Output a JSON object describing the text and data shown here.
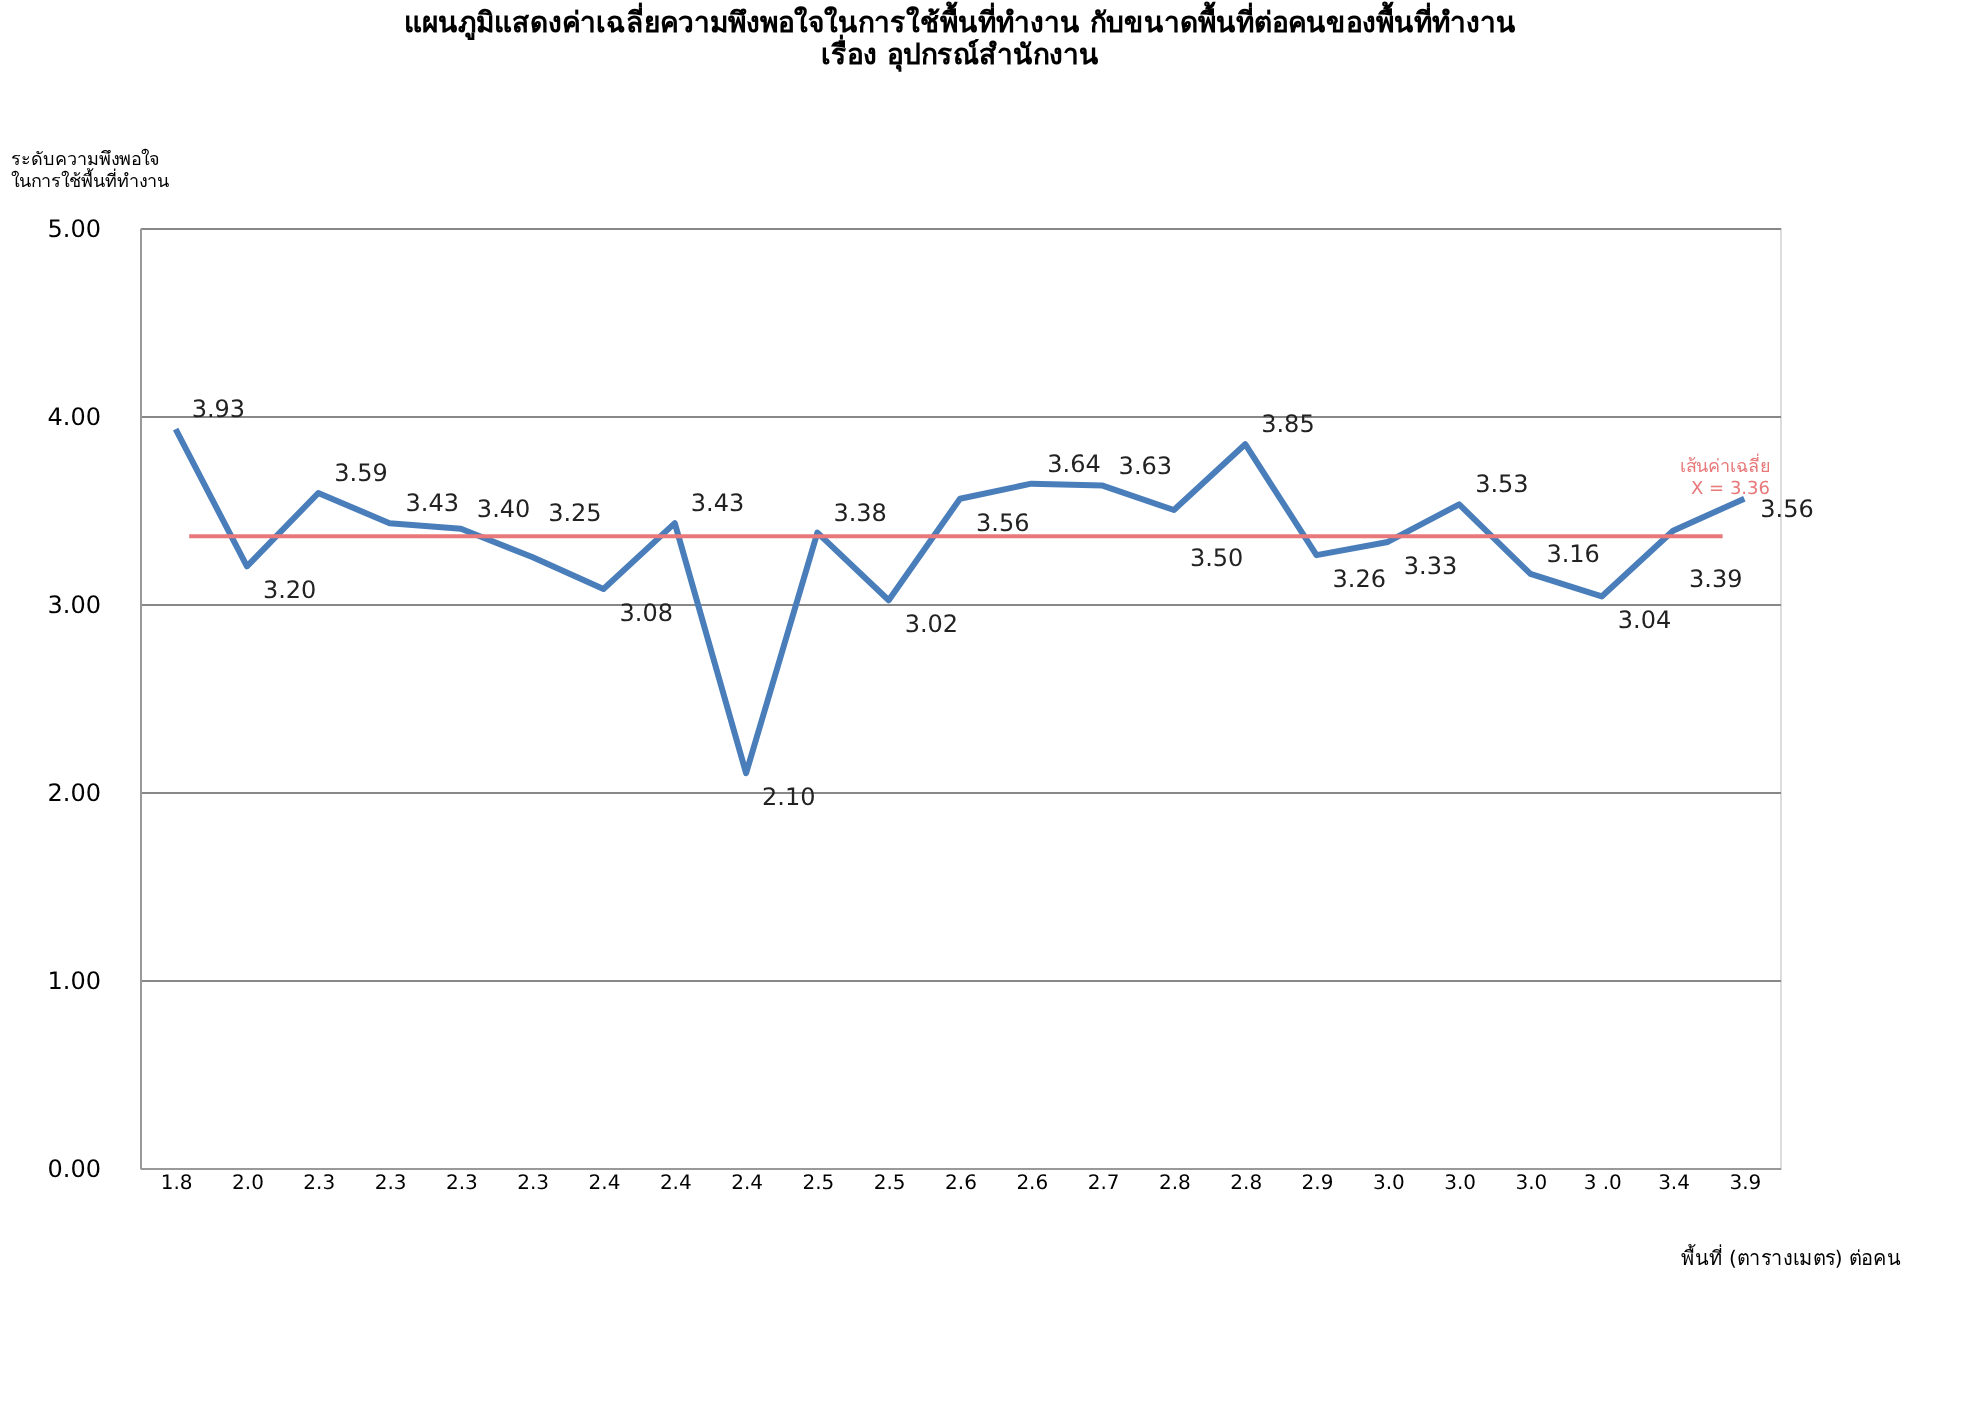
{
  "chart_data": {
    "type": "line",
    "title": [
      "แผนภูมิแสดงค่าเฉลี่ยความพึงพอใจในการใช้พื้นที่ทำงาน กับขนาดพื้นที่ต่อคนของพื้นที่ทำงาน",
      "เรื่อง อุปกรณ์สำนักงาน"
    ],
    "ylabel": "ระดับความพึงพอใจ\nในการใช้พื้นที่ทำงาน",
    "xlabel": "พื้นที่ (ตารางเมตร) ต่อคน",
    "categories": [
      "1.8",
      "2.0",
      "2.3",
      "2.3",
      "2.3",
      "2.3",
      "2.4",
      "2.4",
      "2.4",
      "2.5",
      "2.5",
      "2.6",
      "2.6",
      "2.7",
      "2.8",
      "2.8",
      "2.9",
      "3.0",
      "3.0",
      "3.0",
      "3 .0",
      "3.4",
      "3.9"
    ],
    "series": [
      {
        "color": "#4a7ebb",
        "values": [
          3.93,
          3.2,
          3.59,
          3.43,
          3.4,
          3.25,
          3.08,
          3.43,
          2.1,
          3.38,
          3.02,
          3.56,
          3.64,
          3.63,
          3.5,
          3.85,
          3.26,
          3.33,
          3.53,
          3.16,
          3.04,
          3.39,
          3.56
        ]
      }
    ],
    "ylim": [
      0,
      5
    ],
    "yticks": [
      {
        "value": 0,
        "label": "0.00"
      },
      {
        "value": 1,
        "label": "1.00"
      },
      {
        "value": 2,
        "label": "2.00"
      },
      {
        "value": 3,
        "label": "3.00"
      },
      {
        "value": 4,
        "label": "4.00"
      },
      {
        "value": 5,
        "label": "5.00"
      }
    ],
    "grid": "y",
    "marker": "none",
    "line_style": "solid",
    "value_labels": [
      "3.93",
      "3.20",
      "3.59",
      "3.43",
      "3.40",
      "3.25",
      "3.08",
      "3.43",
      "2.10",
      "3.38",
      "3.02",
      "3.56",
      "3.64",
      "3.63",
      "3.50",
      "3.85",
      "3.26",
      "3.33",
      "3.53",
      "3.16",
      "3.04",
      "3.39",
      "3.56"
    ],
    "legend": false,
    "ref_lines": [
      {
        "axis": "y",
        "value": 3.36,
        "label": "เส้นค่าเฉลี่ย\nX = 3.36",
        "color": "#e8787a"
      }
    ]
  }
}
